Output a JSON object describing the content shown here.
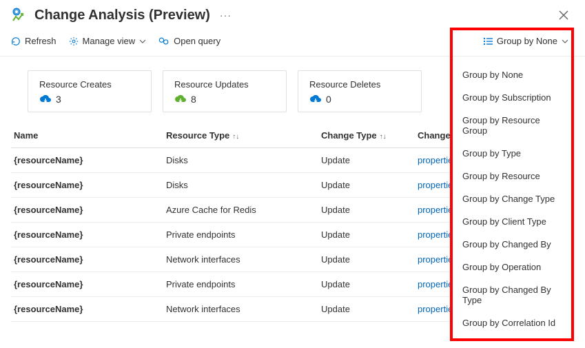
{
  "header": {
    "title": "Change Analysis (Preview)"
  },
  "toolbar": {
    "refresh": "Refresh",
    "manage_view": "Manage view",
    "open_query": "Open query",
    "group_by": "Group by None"
  },
  "cards": [
    {
      "title": "Resource Creates",
      "value": "3",
      "color": "#0078d4"
    },
    {
      "title": "Resource Updates",
      "value": "8",
      "color": "#5fb030"
    },
    {
      "title": "Resource Deletes",
      "value": "0",
      "color": "#0078d4"
    }
  ],
  "columns": {
    "name": "Name",
    "type": "Resource Type",
    "change": "Change Type",
    "changes": "Changes"
  },
  "rows": [
    {
      "name": "{resourceName}",
      "type": "Disks",
      "change": "Update",
      "changes": "properties.Las"
    },
    {
      "name": "{resourceName}",
      "type": "Disks",
      "change": "Update",
      "changes": "properties.Las"
    },
    {
      "name": "{resourceName}",
      "type": "Azure Cache for Redis",
      "change": "Update",
      "changes": "properties.pr"
    },
    {
      "name": "{resourceName}",
      "type": "Private endpoints",
      "change": "Update",
      "changes": "properties.pr"
    },
    {
      "name": "{resourceName}",
      "type": "Network interfaces",
      "change": "Update",
      "changes": "properties.pr"
    },
    {
      "name": "{resourceName}",
      "type": "Private endpoints",
      "change": "Update",
      "changes": "properties.cu"
    },
    {
      "name": "{resourceName}",
      "type": "Network interfaces",
      "change": "Update",
      "changes": "properties.pr"
    }
  ],
  "dropdown": [
    "Group by None",
    "Group by Subscription",
    "Group by Resource Group",
    "Group by Type",
    "Group by Resource",
    "Group by Change Type",
    "Group by Client Type",
    "Group by Changed By",
    "Group by Operation",
    "Group by Changed By Type",
    "Group by Correlation Id"
  ]
}
